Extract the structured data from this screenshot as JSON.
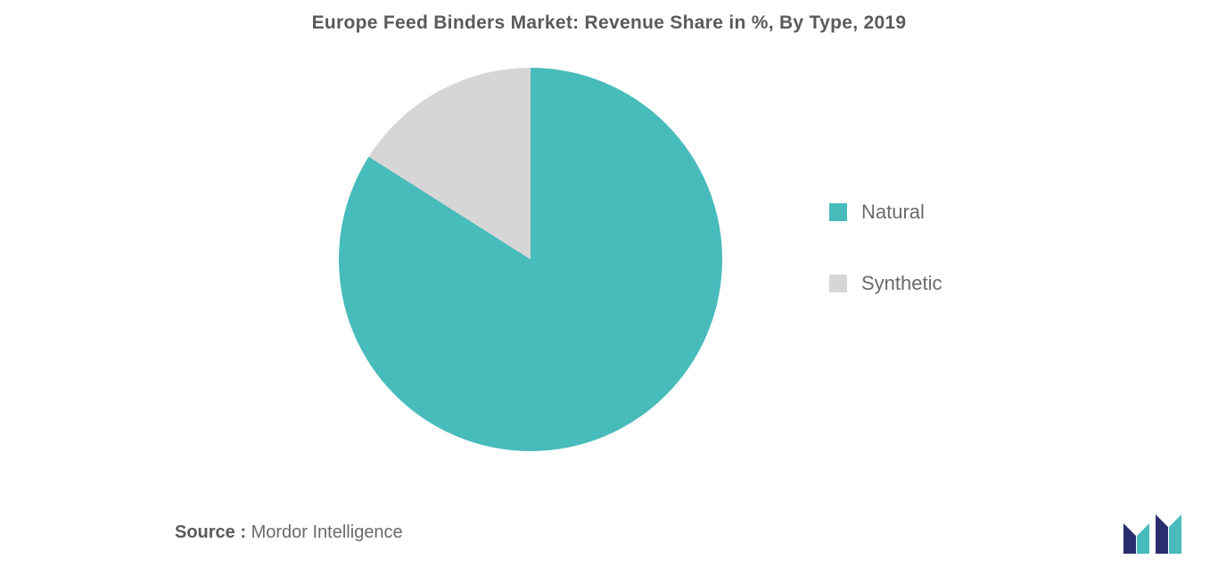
{
  "title": "Europe Feed Binders Market: Revenue Share in %, By Type, 2019",
  "chart": {
    "type": "pie",
    "radius": 215,
    "background_color": "#ffffff",
    "series": [
      {
        "label": "Natural",
        "value": 84,
        "color": "#48bbbb"
      },
      {
        "label": "Synthetic",
        "value": 16,
        "color": "#d6d6d6"
      }
    ],
    "legend": {
      "position": "right",
      "font_size": 22,
      "font_color": "#6a6a6a",
      "swatch_size": 20,
      "gap": 54
    }
  },
  "source": {
    "label": "Source :",
    "text": "Mordor Intelligence",
    "font_size": 20
  },
  "logo": {
    "primary_color": "#2a2e6e",
    "accent_color": "#48bbbb"
  }
}
